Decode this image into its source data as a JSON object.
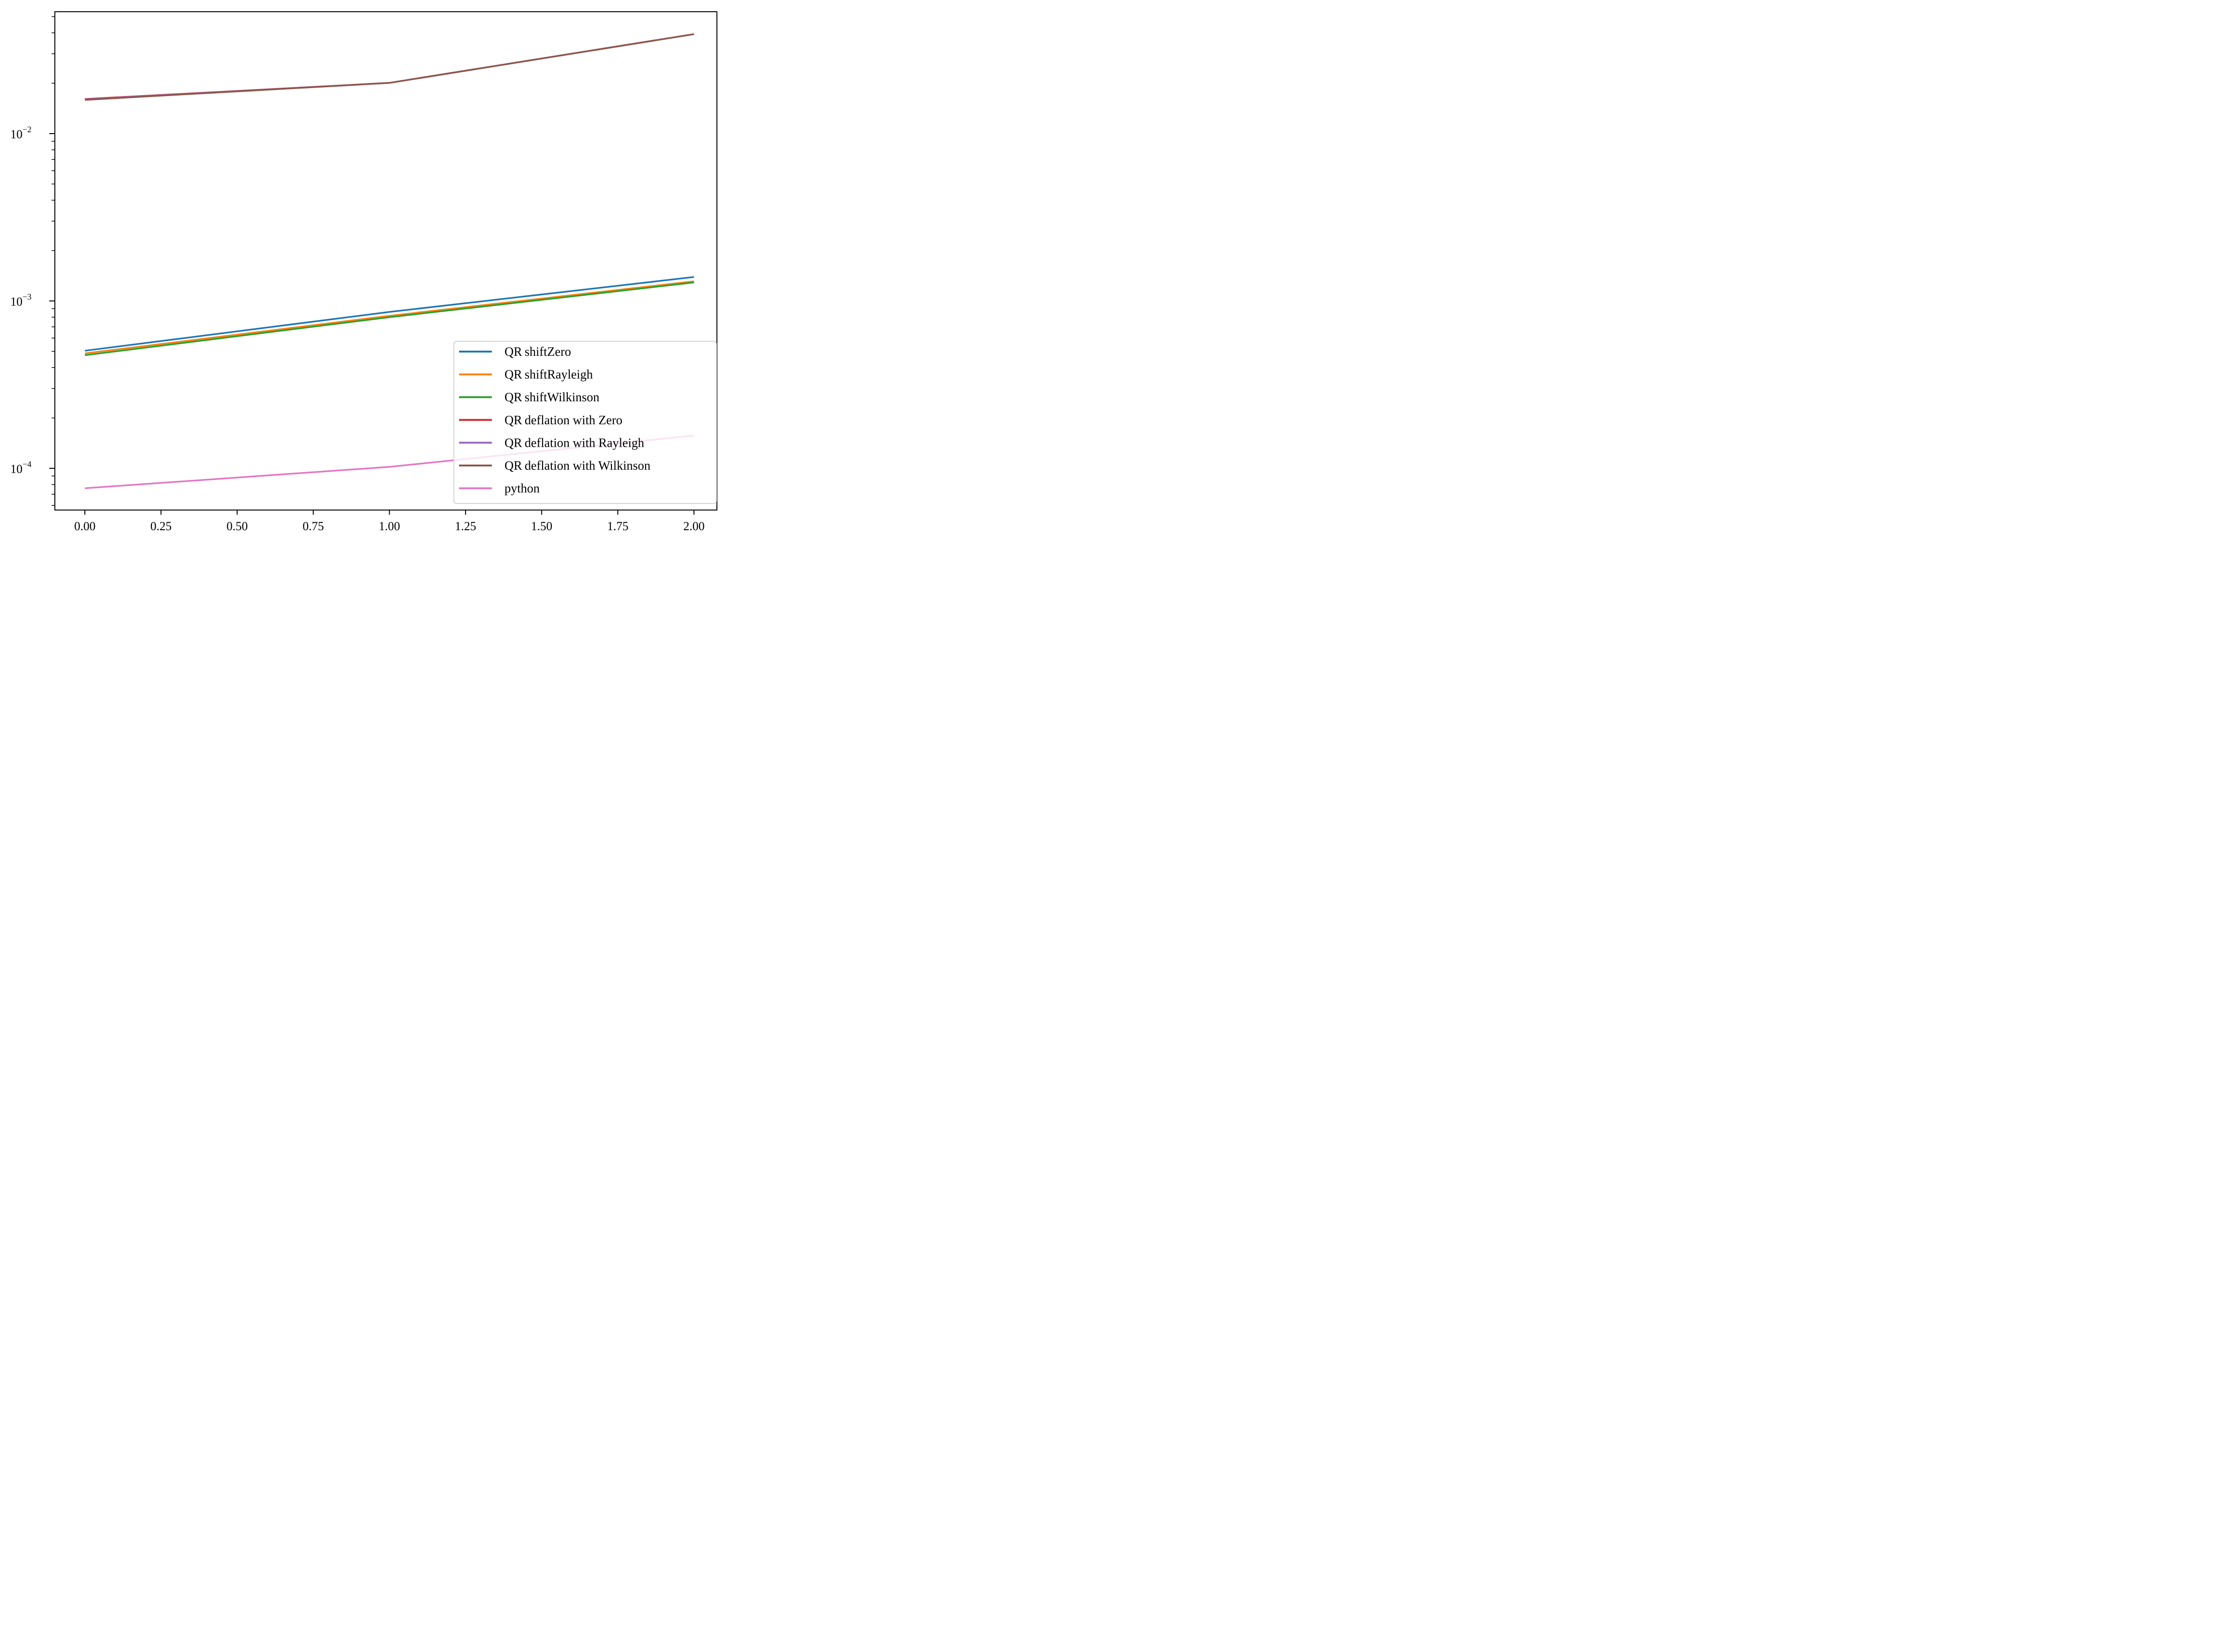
{
  "chart_data": {
    "type": "line",
    "title": "",
    "xlabel": "",
    "ylabel": "",
    "yscale": "log",
    "xlim": [
      -0.1,
      2.1
    ],
    "ylim": [
      5.5e-05,
      0.052
    ],
    "grid": false,
    "legend_position": "lower right",
    "x": [
      0,
      1,
      2
    ],
    "x_ticks": [
      0.0,
      0.25,
      0.5,
      0.75,
      1.0,
      1.25,
      1.5,
      1.75,
      2.0
    ],
    "x_tick_labels": [
      "0.00",
      "0.25",
      "0.50",
      "0.75",
      "1.00",
      "1.25",
      "1.50",
      "1.75",
      "2.00"
    ],
    "y_ticks": [
      0.0001,
      0.001,
      0.01
    ],
    "y_tick_labels": [
      {
        "base": "10",
        "exp": "−4"
      },
      {
        "base": "10",
        "exp": "−3"
      },
      {
        "base": "10",
        "exp": "−2"
      }
    ],
    "series": [
      {
        "name": "QR_shiftZero",
        "color": "#1f77b4",
        "values": [
          0.000504,
          0.00086,
          0.00139
        ]
      },
      {
        "name": "QR_shiftRayleigh",
        "color": "#ff7f0e",
        "values": [
          0.000486,
          0.000815,
          0.00131
        ]
      },
      {
        "name": "QR_shiftWilkinson",
        "color": "#2ca02c",
        "values": [
          0.000474,
          0.0008,
          0.00129
        ]
      },
      {
        "name": "QR_deflation with Zero",
        "color": "#d62728",
        "values": [
          0.0161,
          0.0201,
          0.0393
        ]
      },
      {
        "name": "QR_deflation with Rayleigh",
        "color": "#9467bd",
        "values": [
          0.016,
          0.0201,
          0.0393
        ]
      },
      {
        "name": "QR_deflation with Wilkinson",
        "color": "#8c564b",
        "values": [
          0.0159,
          0.0201,
          0.0393
        ]
      },
      {
        "name": "python",
        "color": "#e377c2",
        "values": [
          7.6e-05,
          0.000102,
          0.000157
        ]
      }
    ]
  },
  "legend": {
    "items": [
      {
        "label": "QR shiftZero",
        "color": "#1f77b4"
      },
      {
        "label": "QR shiftRayleigh",
        "color": "#ff7f0e"
      },
      {
        "label": "QR shiftWilkinson",
        "color": "#2ca02c"
      },
      {
        "label": "QR deflation with Zero",
        "color": "#d62728"
      },
      {
        "label": "QR deflation with Rayleigh",
        "color": "#9467bd"
      },
      {
        "label": "QR deflation with Wilkinson",
        "color": "#8c564b"
      },
      {
        "label": "python",
        "color": "#e377c2"
      }
    ]
  }
}
